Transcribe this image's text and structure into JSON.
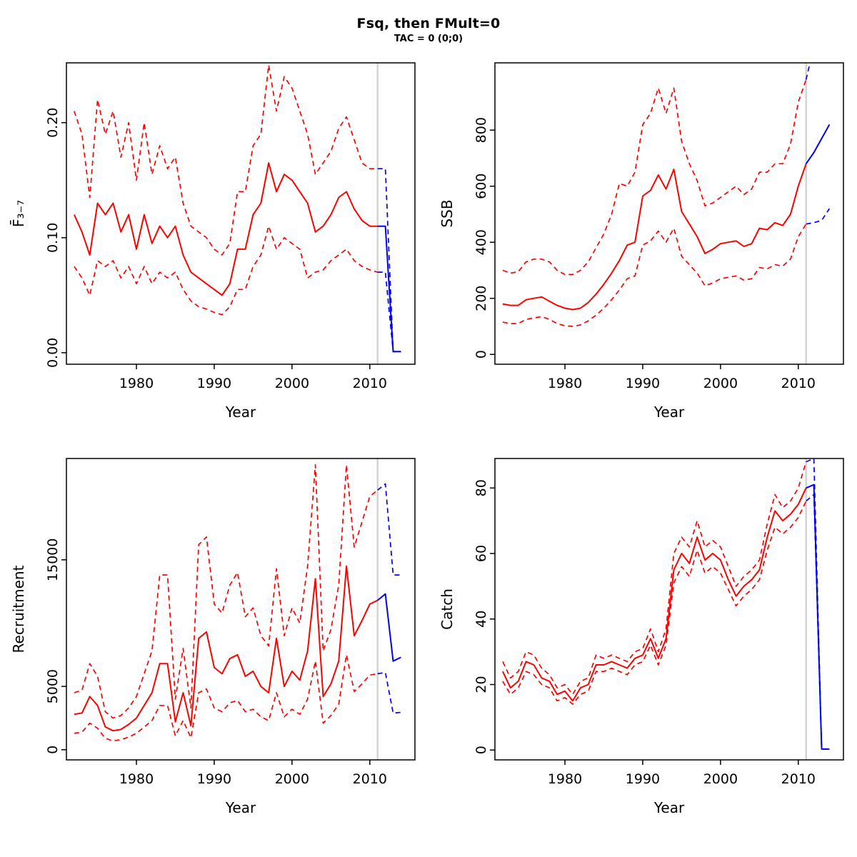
{
  "header": {
    "title": "Fsq, then FMult=0",
    "subtitle": "TAC = 0 (0;0)"
  },
  "style": {
    "colors": {
      "red": "#ff0000",
      "blue": "#0000ff",
      "vline": "#d3d3d3",
      "axis": "#000000"
    }
  },
  "years": [
    1972,
    1973,
    1974,
    1975,
    1976,
    1977,
    1978,
    1979,
    1980,
    1981,
    1982,
    1983,
    1984,
    1985,
    1986,
    1987,
    1988,
    1989,
    1990,
    1991,
    1992,
    1993,
    1994,
    1995,
    1996,
    1997,
    1998,
    1999,
    2000,
    2001,
    2002,
    2003,
    2004,
    2005,
    2006,
    2007,
    2008,
    2009,
    2010,
    2011
  ],
  "projection_years": [
    2011,
    2012,
    2013,
    2014
  ],
  "chart_data": [
    {
      "name": "fbar",
      "type": "line",
      "xlabel": "Year",
      "ylabel": "F̄₃₋₇",
      "xlim": [
        1971,
        2015.8
      ],
      "ylim": [
        -0.01,
        0.252
      ],
      "xticks": [
        1980,
        1990,
        2000,
        2010
      ],
      "xtick_labels": [
        "1980",
        "1990",
        "2000",
        "2010"
      ],
      "yticks": [
        0,
        0.1,
        0.2
      ],
      "ytick_labels": [
        "0.00",
        "0.10",
        "0.20"
      ],
      "vline": 2011,
      "series": [
        {
          "name": "median",
          "color": "red",
          "dash": "solid",
          "values": [
            0.12,
            0.105,
            0.085,
            0.13,
            0.12,
            0.13,
            0.105,
            0.12,
            0.09,
            0.12,
            0.095,
            0.11,
            0.1,
            0.11,
            0.085,
            0.07,
            0.065,
            0.06,
            0.055,
            0.05,
            0.06,
            0.09,
            0.09,
            0.12,
            0.13,
            0.165,
            0.14,
            0.155,
            0.15,
            0.14,
            0.13,
            0.105,
            0.11,
            0.12,
            0.135,
            0.14,
            0.125,
            0.115,
            0.11,
            0.11
          ]
        },
        {
          "name": "upper-ci",
          "color": "red",
          "dash": "dashed",
          "values": [
            0.21,
            0.19,
            0.135,
            0.22,
            0.19,
            0.21,
            0.17,
            0.2,
            0.15,
            0.2,
            0.155,
            0.18,
            0.16,
            0.17,
            0.13,
            0.11,
            0.105,
            0.1,
            0.09,
            0.085,
            0.095,
            0.14,
            0.14,
            0.18,
            0.19,
            0.25,
            0.21,
            0.24,
            0.23,
            0.21,
            0.19,
            0.155,
            0.165,
            0.175,
            0.195,
            0.205,
            0.185,
            0.165,
            0.16,
            0.16
          ]
        },
        {
          "name": "lower-ci",
          "color": "red",
          "dash": "dashed",
          "values": [
            0.075,
            0.065,
            0.05,
            0.08,
            0.075,
            0.08,
            0.065,
            0.075,
            0.06,
            0.075,
            0.06,
            0.07,
            0.065,
            0.07,
            0.055,
            0.045,
            0.04,
            0.038,
            0.035,
            0.033,
            0.04,
            0.055,
            0.055,
            0.075,
            0.085,
            0.11,
            0.09,
            0.1,
            0.095,
            0.09,
            0.065,
            0.07,
            0.072,
            0.08,
            0.085,
            0.09,
            0.08,
            0.075,
            0.072,
            0.07
          ]
        },
        {
          "name": "projection-median",
          "color": "blue",
          "dash": "solid",
          "x": "projection",
          "values": [
            0.11,
            0.11,
            0.001,
            0.001
          ]
        },
        {
          "name": "projection-upper",
          "color": "blue",
          "dash": "dashed",
          "x": "projection",
          "values": [
            0.16,
            0.16,
            0.001,
            0.001
          ]
        },
        {
          "name": "projection-lower",
          "color": "blue",
          "dash": "dashed",
          "x": "projection",
          "values": [
            0.07,
            0.07,
            0.001,
            0.001
          ]
        }
      ]
    },
    {
      "name": "ssb",
      "type": "line",
      "xlabel": "Year",
      "ylabel": "SSB",
      "xlim": [
        1971,
        2015.8
      ],
      "ylim": [
        -35,
        1040
      ],
      "xticks": [
        1980,
        1990,
        2000,
        2010
      ],
      "xtick_labels": [
        "1980",
        "1990",
        "2000",
        "2010"
      ],
      "yticks": [
        0,
        200,
        400,
        600,
        800
      ],
      "ytick_labels": [
        "0",
        "200",
        "400",
        "600",
        "800"
      ],
      "vline": 2011,
      "series": [
        {
          "name": "median",
          "color": "red",
          "dash": "solid",
          "values": [
            180,
            175,
            175,
            195,
            200,
            205,
            190,
            175,
            165,
            160,
            165,
            185,
            215,
            250,
            290,
            335,
            390,
            400,
            565,
            585,
            640,
            590,
            660,
            510,
            465,
            420,
            360,
            375,
            395,
            400,
            405,
            385,
            395,
            450,
            445,
            470,
            460,
            500,
            600,
            680
          ]
        },
        {
          "name": "upper-ci",
          "color": "red",
          "dash": "dashed",
          "values": [
            300,
            290,
            295,
            330,
            340,
            340,
            330,
            300,
            285,
            285,
            300,
            330,
            380,
            430,
            500,
            610,
            600,
            650,
            820,
            860,
            950,
            860,
            950,
            760,
            680,
            620,
            530,
            540,
            560,
            580,
            600,
            570,
            590,
            650,
            650,
            680,
            680,
            750,
            900,
            980
          ]
        },
        {
          "name": "lower-ci",
          "color": "red",
          "dash": "dashed",
          "values": [
            115,
            110,
            110,
            125,
            130,
            135,
            125,
            110,
            102,
            100,
            105,
            120,
            140,
            165,
            195,
            230,
            270,
            280,
            390,
            405,
            440,
            400,
            450,
            350,
            320,
            290,
            245,
            255,
            270,
            275,
            280,
            265,
            270,
            310,
            305,
            320,
            315,
            340,
            420,
            465
          ]
        },
        {
          "name": "projection-median",
          "color": "blue",
          "dash": "solid",
          "x": "projection",
          "values": [
            680,
            720,
            770,
            820
          ]
        },
        {
          "name": "projection-upper",
          "color": "blue",
          "dash": "dashed",
          "x": "projection",
          "values": [
            980,
            1100,
            1160,
            1250
          ]
        },
        {
          "name": "projection-lower",
          "color": "blue",
          "dash": "dashed",
          "x": "projection",
          "values": [
            465,
            470,
            478,
            520
          ]
        }
      ]
    },
    {
      "name": "recruitment",
      "type": "line",
      "xlabel": "Year",
      "ylabel": "Recruitment",
      "xlim": [
        1971,
        2015.8
      ],
      "ylim": [
        -800,
        23000
      ],
      "xticks": [
        1980,
        1990,
        2000,
        2010
      ],
      "xtick_labels": [
        "1980",
        "1990",
        "2000",
        "2010"
      ],
      "yticks": [
        0,
        5000,
        15000
      ],
      "ytick_labels": [
        "0",
        "5000",
        "15000"
      ],
      "vline": 2011,
      "series": [
        {
          "name": "median",
          "color": "red",
          "dash": "solid",
          "values": [
            2800,
            2900,
            4200,
            3500,
            1800,
            1500,
            1600,
            2000,
            2500,
            3500,
            4500,
            6800,
            6800,
            2200,
            4500,
            1900,
            8800,
            9300,
            6500,
            6000,
            7200,
            7500,
            5800,
            6200,
            5000,
            4500,
            8800,
            5000,
            6200,
            5500,
            7800,
            13500,
            4200,
            5200,
            7000,
            14500,
            9000,
            10200,
            11500,
            11800
          ]
        },
        {
          "name": "upper-ci",
          "color": "red",
          "dash": "dashed",
          "values": [
            4500,
            4700,
            6800,
            5800,
            3000,
            2500,
            2700,
            3300,
            4200,
            6000,
            7800,
            13800,
            13800,
            4000,
            8000,
            3300,
            16200,
            16800,
            11500,
            10800,
            13000,
            14000,
            10500,
            11200,
            9000,
            8200,
            14300,
            9000,
            11200,
            10000,
            14500,
            22500,
            7800,
            9500,
            13000,
            22500,
            16000,
            18000,
            20000,
            20500
          ]
        },
        {
          "name": "lower-ci",
          "color": "red",
          "dash": "dashed",
          "values": [
            1300,
            1400,
            2100,
            1700,
            900,
            700,
            800,
            1000,
            1300,
            1800,
            2300,
            3500,
            3500,
            1100,
            2300,
            950,
            4500,
            4800,
            3300,
            3000,
            3700,
            3900,
            3000,
            3200,
            2600,
            2300,
            4500,
            2600,
            3200,
            2800,
            4000,
            7000,
            2100,
            2700,
            3600,
            7500,
            4600,
            5200,
            5900,
            6000
          ]
        },
        {
          "name": "projection-median",
          "color": "blue",
          "dash": "solid",
          "x": "projection",
          "values": [
            11800,
            12300,
            7000,
            7300
          ]
        },
        {
          "name": "projection-upper",
          "color": "blue",
          "dash": "dashed",
          "x": "projection",
          "values": [
            20500,
            21000,
            13800,
            13800
          ]
        },
        {
          "name": "projection-lower",
          "color": "blue",
          "dash": "dashed",
          "x": "projection",
          "values": [
            6000,
            6100,
            2900,
            2950
          ]
        }
      ]
    },
    {
      "name": "catch",
      "type": "line",
      "xlabel": "Year",
      "ylabel": "Catch",
      "xlim": [
        1971,
        2015.8
      ],
      "ylim": [
        -3,
        89
      ],
      "xticks": [
        1980,
        1990,
        2000,
        2010
      ],
      "xtick_labels": [
        "1980",
        "1990",
        "2000",
        "2010"
      ],
      "yticks": [
        0,
        20,
        40,
        60,
        80
      ],
      "ytick_labels": [
        "0",
        "20",
        "40",
        "60",
        "80"
      ],
      "vline": 2011,
      "series": [
        {
          "name": "median",
          "color": "red",
          "dash": "solid",
          "values": [
            24,
            19,
            21,
            27,
            26,
            22,
            21,
            17,
            18,
            15,
            19,
            20,
            26,
            26,
            27,
            26,
            25,
            28,
            29,
            34,
            28,
            34,
            55,
            60,
            57,
            65,
            58,
            60,
            58,
            52,
            47,
            50,
            52,
            55,
            65,
            73,
            70,
            72,
            75,
            80
          ]
        },
        {
          "name": "upper-ci",
          "color": "red",
          "dash": "dashed",
          "values": [
            27,
            22,
            24,
            30,
            29,
            25,
            23,
            19,
            20,
            17,
            21,
            22,
            29,
            28,
            29,
            28,
            27,
            30,
            31,
            37,
            30,
            37,
            60,
            65,
            62,
            70,
            62,
            64,
            62,
            56,
            50,
            53,
            55,
            58,
            69,
            78,
            74,
            76,
            80,
            88
          ]
        },
        {
          "name": "lower-ci",
          "color": "red",
          "dash": "dashed",
          "values": [
            21,
            17,
            19,
            24,
            23,
            20,
            19,
            15,
            16,
            14,
            17,
            18,
            24,
            24,
            25,
            24,
            23,
            26,
            27,
            32,
            26,
            32,
            51,
            56,
            53,
            61,
            54,
            56,
            54,
            49,
            44,
            47,
            49,
            52,
            61,
            68,
            66,
            68,
            71,
            76
          ]
        },
        {
          "name": "projection-median",
          "color": "blue",
          "dash": "solid",
          "x": "projection",
          "values": [
            80,
            81,
            0.3,
            0.3
          ]
        },
        {
          "name": "projection-upper",
          "color": "blue",
          "dash": "dashed",
          "x": "projection",
          "values": [
            88,
            89,
            0.3,
            0.3
          ]
        },
        {
          "name": "projection-lower",
          "color": "blue",
          "dash": "dashed",
          "x": "projection",
          "values": [
            76,
            78,
            0.3,
            0.3
          ]
        }
      ]
    }
  ]
}
